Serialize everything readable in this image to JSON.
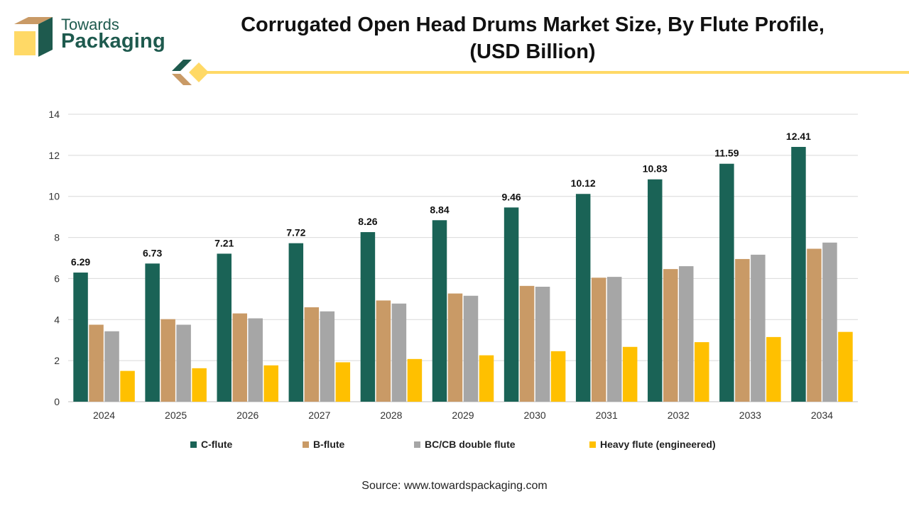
{
  "brand": {
    "line1": "Towards",
    "line2": "Packaging",
    "colors": {
      "green": "#1e5a4e",
      "gold": "#ffd966",
      "tan": "#c99a66"
    }
  },
  "header": {
    "title_line1": "Corrugated Open Head Drums Market Size, By Flute Profile,",
    "title_line2": "(USD Billion)"
  },
  "source": "Source: www.towardspackaging.com",
  "chart_data": {
    "type": "bar",
    "title": "Corrugated Open Head Drums Market Size, By Flute Profile, (USD Billion)",
    "xlabel": "",
    "ylabel": "",
    "ylim": [
      0,
      14
    ],
    "yticks": [
      0,
      2,
      4,
      6,
      8,
      10,
      12,
      14
    ],
    "grid": true,
    "legend_position": "bottom",
    "categories": [
      "2024",
      "2025",
      "2026",
      "2027",
      "2028",
      "2029",
      "2030",
      "2031",
      "2032",
      "2033",
      "2034"
    ],
    "series": [
      {
        "name": "C-flute",
        "color": "#1a6356",
        "labeled": true,
        "values": [
          6.29,
          6.73,
          7.21,
          7.72,
          8.26,
          8.84,
          9.46,
          10.12,
          10.83,
          11.59,
          12.41
        ]
      },
      {
        "name": "B-flute",
        "color": "#c99a66",
        "labeled": false,
        "values": [
          3.75,
          4.02,
          4.3,
          4.6,
          4.93,
          5.27,
          5.64,
          6.04,
          6.46,
          6.95,
          7.45
        ]
      },
      {
        "name": "BC/CB double flute",
        "color": "#a6a6a6",
        "labeled": false,
        "values": [
          3.43,
          3.75,
          4.06,
          4.4,
          4.78,
          5.16,
          5.6,
          6.08,
          6.6,
          7.16,
          7.75
        ]
      },
      {
        "name": "Heavy flute (engineered)",
        "color": "#ffc000",
        "labeled": false,
        "values": [
          1.5,
          1.63,
          1.77,
          1.92,
          2.08,
          2.26,
          2.46,
          2.67,
          2.9,
          3.15,
          3.4
        ]
      }
    ]
  }
}
